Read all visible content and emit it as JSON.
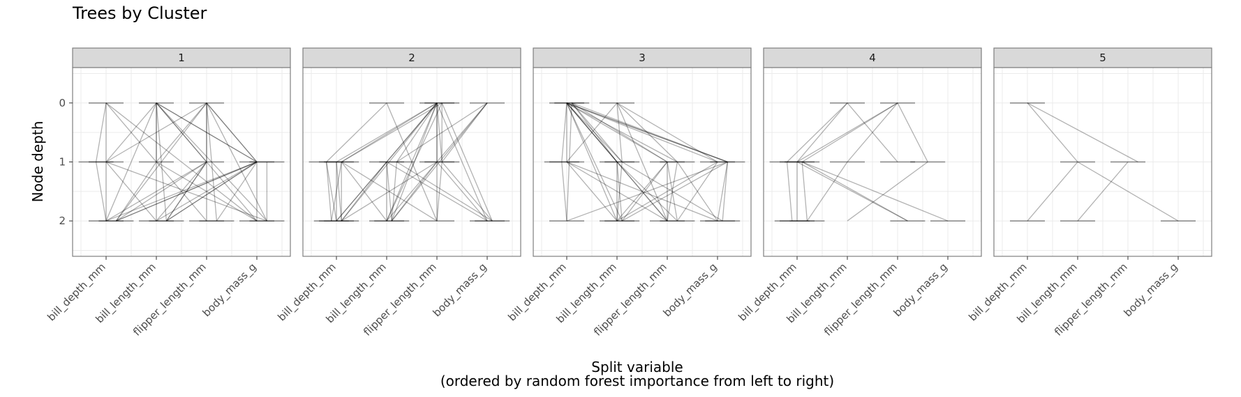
{
  "chart_data": {
    "type": "line",
    "title": "Trees by Cluster",
    "xlabel": "Split variable",
    "xlabel_sub": "(ordered by random forest importance from left to right)",
    "ylabel": "Node depth",
    "x_categories": [
      "bill_depth_mm",
      "bill_length_mm",
      "flipper_length_mm",
      "body_mass_g"
    ],
    "y_ticks": [
      0,
      1,
      2
    ],
    "ylim": [
      2.6,
      -0.6
    ],
    "grid": true,
    "line_color": "#000000",
    "line_opacity": 0.3,
    "facets": [
      {
        "label": "1",
        "nodes": [
          [
            0.0,
            0
          ],
          [
            1.0,
            0
          ],
          [
            2.0,
            0
          ],
          [
            -0.2,
            1
          ],
          [
            0.0,
            1
          ],
          [
            1.0,
            1
          ],
          [
            2.0,
            1
          ],
          [
            3.0,
            1
          ],
          [
            3.2,
            1
          ],
          [
            0.0,
            2
          ],
          [
            0.2,
            2
          ],
          [
            1.0,
            2
          ],
          [
            1.2,
            2
          ],
          [
            2.0,
            2
          ],
          [
            2.2,
            2
          ],
          [
            3.0,
            2
          ],
          [
            3.2,
            2
          ]
        ],
        "edges": [
          [
            0.0,
            0,
            -0.2,
            1
          ],
          [
            0.0,
            0,
            0.0,
            2
          ],
          [
            0.0,
            0,
            2.0,
            2
          ],
          [
            0.0,
            0,
            3.0,
            2
          ],
          [
            1.0,
            0,
            0.0,
            1
          ],
          [
            1.0,
            0,
            0.0,
            2
          ],
          [
            1.0,
            0,
            1.0,
            2
          ],
          [
            1.0,
            0,
            1.2,
            2
          ],
          [
            1.0,
            0,
            2.0,
            1
          ],
          [
            1.0,
            0,
            2.0,
            1
          ],
          [
            1.0,
            0,
            3.0,
            1
          ],
          [
            1.0,
            0,
            3.0,
            1
          ],
          [
            1.0,
            0,
            3.2,
            2
          ],
          [
            1.0,
            0,
            1.0,
            1
          ],
          [
            2.0,
            0,
            0.0,
            1
          ],
          [
            2.0,
            0,
            0.2,
            2
          ],
          [
            2.0,
            0,
            1.0,
            1
          ],
          [
            2.0,
            0,
            2.0,
            1
          ],
          [
            2.0,
            0,
            2.0,
            1
          ],
          [
            2.0,
            0,
            3.0,
            1
          ],
          [
            2.0,
            0,
            3.0,
            1
          ],
          [
            2.0,
            0,
            2.2,
            2
          ],
          [
            2.0,
            0,
            3.2,
            2
          ],
          [
            -0.2,
            1,
            0.0,
            2
          ],
          [
            0.0,
            1,
            1.0,
            2
          ],
          [
            0.0,
            1,
            3.2,
            2
          ],
          [
            1.0,
            1,
            0.2,
            2
          ],
          [
            1.0,
            1,
            3.0,
            2
          ],
          [
            2.0,
            1,
            0.0,
            2
          ],
          [
            2.0,
            1,
            0.2,
            2
          ],
          [
            2.0,
            1,
            1.0,
            2
          ],
          [
            2.0,
            1,
            1.2,
            2
          ],
          [
            2.0,
            1,
            1.2,
            2
          ],
          [
            2.0,
            1,
            2.0,
            2
          ],
          [
            2.0,
            1,
            3.0,
            2
          ],
          [
            3.0,
            1,
            0.0,
            2
          ],
          [
            3.0,
            1,
            0.2,
            2
          ],
          [
            3.0,
            1,
            0.2,
            2
          ],
          [
            3.0,
            1,
            1.0,
            2
          ],
          [
            3.0,
            1,
            1.2,
            2
          ],
          [
            3.0,
            1,
            1.2,
            2
          ],
          [
            3.0,
            1,
            2.2,
            2
          ],
          [
            3.0,
            1,
            3.0,
            2
          ],
          [
            3.2,
            1,
            3.2,
            2
          ]
        ]
      },
      {
        "label": "2",
        "nodes": [
          [
            1.0,
            0
          ],
          [
            2.0,
            0
          ],
          [
            2.1,
            0
          ],
          [
            3.0,
            0
          ],
          [
            -0.2,
            1
          ],
          [
            0.0,
            1
          ],
          [
            0.1,
            1
          ],
          [
            1.0,
            1
          ],
          [
            1.2,
            1
          ],
          [
            2.0,
            1
          ],
          [
            2.1,
            1
          ],
          [
            -0.1,
            2
          ],
          [
            0.0,
            2
          ],
          [
            0.1,
            2
          ],
          [
            1.0,
            2
          ],
          [
            1.1,
            2
          ],
          [
            2.0,
            2
          ],
          [
            3.0,
            2
          ],
          [
            3.1,
            2
          ]
        ],
        "edges": [
          [
            1.0,
            0,
            -0.2,
            1
          ],
          [
            1.0,
            0,
            2.0,
            2
          ],
          [
            2.0,
            0,
            0.0,
            1
          ],
          [
            2.0,
            0,
            0.1,
            1
          ],
          [
            2.0,
            0,
            1.0,
            1
          ],
          [
            2.0,
            0,
            1.2,
            1
          ],
          [
            2.0,
            0,
            0.0,
            2
          ],
          [
            2.0,
            0,
            0.1,
            2
          ],
          [
            2.0,
            0,
            1.0,
            2
          ],
          [
            2.0,
            0,
            1.1,
            2
          ],
          [
            2.0,
            0,
            2.0,
            1
          ],
          [
            2.0,
            0,
            2.1,
            1
          ],
          [
            2.0,
            0,
            2.0,
            2
          ],
          [
            2.0,
            0,
            3.0,
            2
          ],
          [
            2.1,
            0,
            0.1,
            1
          ],
          [
            2.1,
            0,
            1.0,
            2
          ],
          [
            2.1,
            0,
            2.1,
            1
          ],
          [
            2.1,
            0,
            3.1,
            2
          ],
          [
            3.0,
            0,
            1.2,
            1
          ],
          [
            3.0,
            0,
            2.0,
            1
          ],
          [
            3.0,
            0,
            2.1,
            1
          ],
          [
            3.0,
            0,
            1.1,
            2
          ],
          [
            -0.2,
            1,
            -0.1,
            2
          ],
          [
            -0.2,
            1,
            0.0,
            2
          ],
          [
            0.0,
            1,
            0.0,
            2
          ],
          [
            0.0,
            1,
            0.1,
            2
          ],
          [
            0.1,
            1,
            -0.1,
            2
          ],
          [
            0.1,
            1,
            0.1,
            2
          ],
          [
            0.1,
            1,
            1.0,
            2
          ],
          [
            0.1,
            1,
            2.0,
            2
          ],
          [
            1.0,
            1,
            0.0,
            2
          ],
          [
            1.0,
            1,
            0.1,
            2
          ],
          [
            1.0,
            1,
            1.0,
            2
          ],
          [
            1.0,
            1,
            1.1,
            2
          ],
          [
            1.0,
            1,
            3.0,
            2
          ],
          [
            1.2,
            1,
            1.1,
            2
          ],
          [
            1.2,
            1,
            3.1,
            2
          ],
          [
            2.0,
            1,
            1.0,
            2
          ],
          [
            2.0,
            1,
            1.1,
            2
          ],
          [
            2.0,
            1,
            0.1,
            2
          ],
          [
            2.0,
            1,
            3.0,
            2
          ],
          [
            2.1,
            1,
            2.0,
            2
          ],
          [
            2.1,
            1,
            3.1,
            2
          ]
        ]
      },
      {
        "label": "3",
        "nodes": [
          [
            0.0,
            0
          ],
          [
            0.1,
            0
          ],
          [
            1.0,
            0
          ],
          [
            -0.1,
            1
          ],
          [
            0.0,
            1
          ],
          [
            1.0,
            1
          ],
          [
            1.1,
            1
          ],
          [
            2.0,
            1
          ],
          [
            2.2,
            1
          ],
          [
            3.0,
            1
          ],
          [
            3.2,
            1
          ],
          [
            0.0,
            2
          ],
          [
            1.0,
            2
          ],
          [
            1.1,
            2
          ],
          [
            2.0,
            2
          ],
          [
            2.2,
            2
          ],
          [
            3.0,
            2
          ],
          [
            3.1,
            2
          ]
        ],
        "edges": [
          [
            0.0,
            0,
            -0.1,
            1
          ],
          [
            0.0,
            0,
            0.0,
            1
          ],
          [
            0.0,
            0,
            1.0,
            1
          ],
          [
            0.0,
            0,
            1.0,
            1
          ],
          [
            0.0,
            0,
            1.1,
            1
          ],
          [
            0.0,
            0,
            1.0,
            2
          ],
          [
            0.0,
            0,
            1.1,
            2
          ],
          [
            0.0,
            0,
            2.0,
            1
          ],
          [
            0.0,
            0,
            2.2,
            1
          ],
          [
            0.0,
            0,
            3.0,
            1
          ],
          [
            0.0,
            0,
            3.2,
            1
          ],
          [
            0.0,
            0,
            3.2,
            1
          ],
          [
            0.0,
            0,
            2.0,
            2
          ],
          [
            0.1,
            0,
            1.0,
            1
          ],
          [
            0.1,
            0,
            1.1,
            1
          ],
          [
            0.1,
            0,
            2.0,
            1
          ],
          [
            0.1,
            0,
            3.2,
            1
          ],
          [
            0.1,
            0,
            0.0,
            2
          ],
          [
            1.0,
            0,
            0.0,
            1
          ],
          [
            1.0,
            0,
            1.1,
            1
          ],
          [
            1.0,
            0,
            2.2,
            1
          ],
          [
            1.0,
            0,
            3.0,
            1
          ],
          [
            1.0,
            0,
            2.0,
            2
          ],
          [
            -0.1,
            1,
            0.0,
            2
          ],
          [
            0.0,
            1,
            1.0,
            2
          ],
          [
            0.0,
            1,
            2.0,
            2
          ],
          [
            0.0,
            1,
            3.0,
            2
          ],
          [
            1.0,
            1,
            1.0,
            2
          ],
          [
            1.0,
            1,
            1.1,
            2
          ],
          [
            1.0,
            1,
            2.0,
            2
          ],
          [
            1.0,
            1,
            2.2,
            2
          ],
          [
            1.1,
            1,
            1.0,
            2
          ],
          [
            1.1,
            1,
            3.1,
            2
          ],
          [
            2.0,
            1,
            1.0,
            2
          ],
          [
            2.0,
            1,
            1.1,
            2
          ],
          [
            2.0,
            1,
            2.0,
            2
          ],
          [
            2.0,
            1,
            2.2,
            2
          ],
          [
            2.2,
            1,
            2.0,
            2
          ],
          [
            2.2,
            1,
            3.0,
            2
          ],
          [
            3.0,
            1,
            1.0,
            2
          ],
          [
            3.0,
            1,
            2.2,
            2
          ],
          [
            3.2,
            1,
            1.1,
            2
          ],
          [
            3.2,
            1,
            3.0,
            2
          ],
          [
            3.2,
            1,
            3.1,
            2
          ],
          [
            3.2,
            1,
            0.0,
            2
          ]
        ]
      },
      {
        "label": "4",
        "nodes": [
          [
            1.0,
            0
          ],
          [
            2.0,
            0
          ],
          [
            -0.2,
            1
          ],
          [
            0.0,
            1
          ],
          [
            0.1,
            1
          ],
          [
            1.0,
            1
          ],
          [
            2.0,
            1
          ],
          [
            2.6,
            1
          ],
          [
            -0.1,
            2
          ],
          [
            0.0,
            2
          ],
          [
            0.2,
            2
          ],
          [
            2.2,
            2
          ],
          [
            3.0,
            2
          ]
        ],
        "edges": [
          [
            1.0,
            0,
            -0.2,
            1
          ],
          [
            1.0,
            0,
            0.0,
            1
          ],
          [
            1.0,
            0,
            2.0,
            1
          ],
          [
            2.0,
            0,
            0.0,
            1
          ],
          [
            2.0,
            0,
            0.1,
            1
          ],
          [
            2.0,
            0,
            1.0,
            1
          ],
          [
            2.0,
            0,
            2.6,
            1
          ],
          [
            -0.2,
            1,
            -0.1,
            2
          ],
          [
            0.0,
            1,
            0.0,
            2
          ],
          [
            0.0,
            1,
            2.2,
            2
          ],
          [
            0.1,
            1,
            0.2,
            2
          ],
          [
            0.1,
            1,
            3.0,
            2
          ],
          [
            0.1,
            1,
            2.2,
            2
          ],
          [
            1.0,
            1,
            0.2,
            2
          ],
          [
            2.6,
            1,
            1.0,
            2
          ]
        ]
      },
      {
        "label": "5",
        "nodes": [
          [
            0.0,
            0
          ],
          [
            1.0,
            1
          ],
          [
            2.0,
            1
          ],
          [
            0.0,
            2
          ],
          [
            1.0,
            2
          ],
          [
            3.0,
            2
          ]
        ],
        "edges": [
          [
            0.0,
            0,
            1.0,
            1
          ],
          [
            0.0,
            0,
            2.2,
            1
          ],
          [
            1.0,
            1,
            0.0,
            2
          ],
          [
            1.0,
            1,
            3.0,
            2
          ],
          [
            2.0,
            1,
            1.0,
            2
          ]
        ]
      }
    ]
  }
}
